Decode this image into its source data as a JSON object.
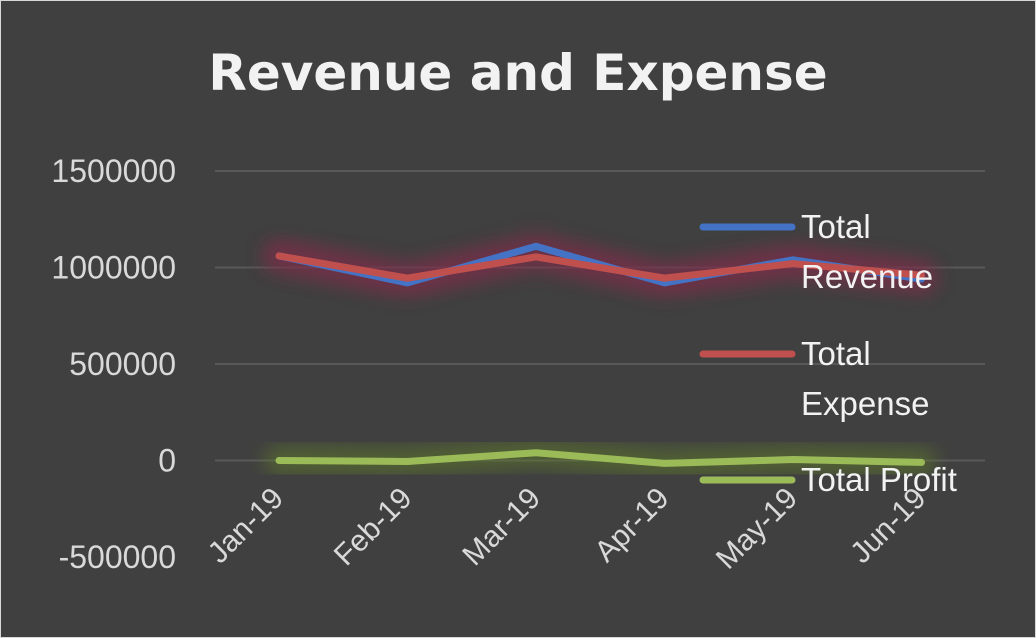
{
  "chart_data": {
    "type": "line",
    "title": "Revenue and Expense",
    "categories": [
      "Jan-19",
      "Feb-19",
      "Mar-19",
      "Apr-19",
      "May-19",
      "Jun-19"
    ],
    "ylim": [
      -500000,
      1500000
    ],
    "yticks": [
      "1500000",
      "1000000",
      "500000",
      "0",
      "-500000"
    ],
    "grid": true,
    "legend_position": "right",
    "series": [
      {
        "name": "Total Revenue",
        "legend_lines": [
          "Total",
          "Revenue"
        ],
        "color": "#4472c4",
        "values": [
          1060000,
          920000,
          1110000,
          920000,
          1040000,
          940000
        ]
      },
      {
        "name": "Total Expense",
        "legend_lines": [
          "Total",
          "Expense"
        ],
        "color": "#c0504d",
        "values": [
          1060000,
          945000,
          1055000,
          945000,
          1020000,
          960000
        ]
      },
      {
        "name": "Total Profit",
        "legend_lines": [
          "Total Profit"
        ],
        "color": "#9bbb59",
        "values": [
          0,
          -5000,
          40000,
          -15000,
          5000,
          -10000
        ]
      }
    ]
  }
}
